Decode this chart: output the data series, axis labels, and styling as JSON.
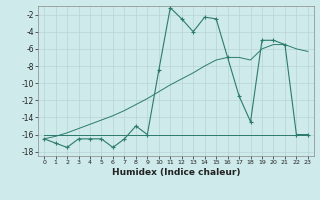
{
  "x": [
    0,
    1,
    2,
    3,
    4,
    5,
    6,
    7,
    8,
    9,
    10,
    11,
    12,
    13,
    14,
    15,
    16,
    17,
    18,
    19,
    20,
    21,
    22,
    23
  ],
  "y_curve": [
    -16.5,
    -17,
    -17.5,
    -16.5,
    -16.5,
    -16.5,
    -17.5,
    -16.5,
    -15,
    -16,
    -8.5,
    -1.2,
    -2.5,
    -4,
    -2.3,
    -2.5,
    -7,
    -11.5,
    -14.5,
    -5,
    -5,
    -5.5,
    -16,
    -16
  ],
  "y_flat": [
    -16,
    -16,
    -16,
    -16,
    -16,
    -16,
    -16,
    -16,
    -16,
    -16,
    -16,
    -16,
    -16,
    -16,
    -16,
    -16,
    -16,
    -16,
    -16,
    -16,
    -16,
    -16,
    -16,
    -16
  ],
  "y_trend": [
    -16.5,
    -16.2,
    -15.8,
    -15.3,
    -14.8,
    -14.3,
    -13.8,
    -13.2,
    -12.5,
    -11.8,
    -11.0,
    -10.2,
    -9.5,
    -8.8,
    -8.0,
    -7.3,
    -7.0,
    -7.0,
    -7.3,
    -6.0,
    -5.5,
    -5.5,
    -6.0,
    -6.3
  ],
  "xlim": [
    -0.5,
    23.5
  ],
  "ylim": [
    -18.5,
    -1.0
  ],
  "yticks": [
    -18,
    -16,
    -14,
    -12,
    -10,
    -8,
    -6,
    -4,
    -2
  ],
  "xticks": [
    0,
    1,
    2,
    3,
    4,
    5,
    6,
    7,
    8,
    9,
    10,
    11,
    12,
    13,
    14,
    15,
    16,
    17,
    18,
    19,
    20,
    21,
    22,
    23
  ],
  "xlabel": "Humidex (Indice chaleur)",
  "line_color": "#2d7a6e",
  "bg_color": "#ceeaea",
  "grid_major_color": "#b8d4d4",
  "grid_minor_color": "#d4e8e8",
  "spine_color": "#888888"
}
